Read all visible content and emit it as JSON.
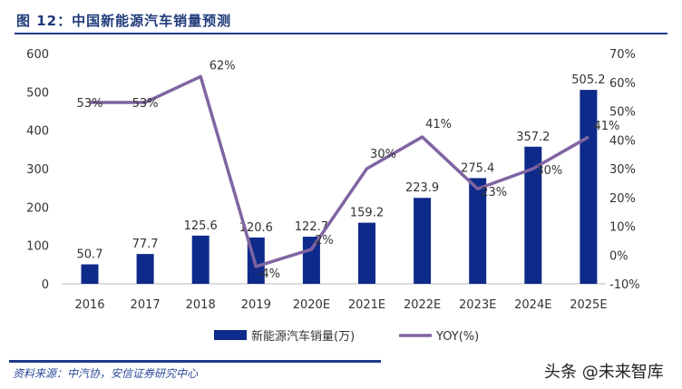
{
  "title": "图 12：中国新能源汽车销量预测",
  "source": "资料来源：中汽协，安信证券研究中心",
  "watermark": "头条 @未来智库",
  "chart_data": {
    "type": "bar",
    "categories": [
      "2016",
      "2017",
      "2018",
      "2019",
      "2020E",
      "2021E",
      "2022E",
      "2023E",
      "2024E",
      "2025E"
    ],
    "series": [
      {
        "name": "新能源汽车销量(万)",
        "type": "bar",
        "axis": "left",
        "color": "#0e2a8a",
        "values": [
          50.7,
          77.7,
          125.6,
          120.6,
          122.7,
          159.2,
          223.9,
          275.4,
          357.2,
          505.2
        ],
        "labels": [
          "50.7",
          "77.7",
          "125.6",
          "120.6",
          "122.7",
          "159.2",
          "223.9",
          "275.4",
          "357.2",
          "505.2"
        ]
      },
      {
        "name": "YOY(%)",
        "type": "line",
        "axis": "right",
        "color": "#8064a2",
        "values": [
          53,
          53,
          62,
          -4,
          2,
          30,
          41,
          23,
          30,
          41
        ],
        "labels": [
          "53%",
          "53%",
          "62%",
          "-4%",
          "2%",
          "30%",
          "41%",
          "23%",
          "30%",
          "41%"
        ]
      }
    ],
    "ylim_left": [
      0,
      600
    ],
    "yticks_left": [
      "0",
      "100",
      "200",
      "300",
      "400",
      "500",
      "600"
    ],
    "ylim_right": [
      -10,
      70
    ],
    "yticks_right": [
      "-10%",
      "0%",
      "10%",
      "20%",
      "30%",
      "40%",
      "50%",
      "60%",
      "70%"
    ],
    "grid": false,
    "legend": "bottom"
  }
}
